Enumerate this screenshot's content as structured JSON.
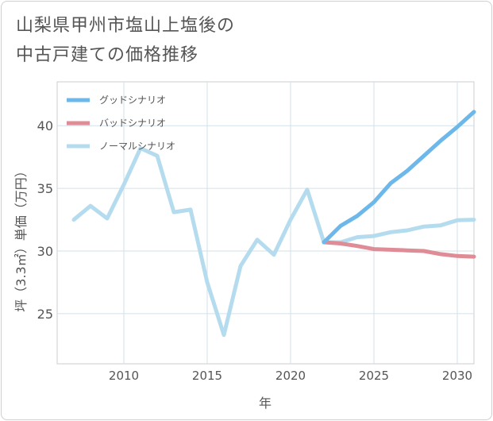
{
  "title": {
    "line1": "山梨県甲州市塩山上塩後の",
    "line2": "中古戸建ての価格推移"
  },
  "chart_data": {
    "type": "line",
    "title": "山梨県甲州市塩山上塩後の中古戸建ての価格推移",
    "xlabel": "年",
    "ylabel": "坪（3.3㎡）単価（万円）",
    "xlim": [
      2006,
      2031
    ],
    "ylim": [
      21,
      43.5
    ],
    "xticks": [
      2010,
      2015,
      2020,
      2025,
      2030
    ],
    "yticks": [
      25,
      30,
      35,
      40
    ],
    "grid": true,
    "legend_position": "top-left",
    "series": [
      {
        "name": "グッドシナリオ",
        "color": "#6cb8ea",
        "x": [
          2022,
          2023,
          2024,
          2025,
          2026,
          2027,
          2028,
          2029,
          2030,
          2031
        ],
        "values": [
          30.7,
          32.0,
          32.8,
          33.9,
          35.4,
          36.4,
          37.6,
          38.8,
          39.9,
          41.1
        ]
      },
      {
        "name": "バッドシナリオ",
        "color": "#df8c96",
        "x": [
          2022,
          2023,
          2024,
          2025,
          2026,
          2027,
          2028,
          2029,
          2030,
          2031
        ],
        "values": [
          30.7,
          30.6,
          30.4,
          30.15,
          30.1,
          30.05,
          30.0,
          29.75,
          29.6,
          29.55
        ]
      },
      {
        "name": "ノーマルシナリオ",
        "color": "#b5dcee",
        "x": [
          2007,
          2008,
          2009,
          2010,
          2011,
          2012,
          2013,
          2014,
          2015,
          2016,
          2017,
          2018,
          2019,
          2020,
          2021,
          2022,
          2023,
          2024,
          2025,
          2026,
          2027,
          2028,
          2029,
          2030,
          2031
        ],
        "values": [
          32.5,
          33.6,
          32.6,
          35.3,
          38.2,
          37.6,
          33.1,
          33.3,
          27.5,
          23.3,
          28.8,
          30.9,
          29.7,
          32.5,
          34.9,
          30.7,
          30.7,
          31.1,
          31.2,
          31.5,
          31.65,
          31.95,
          32.05,
          32.45,
          32.5
        ]
      }
    ]
  }
}
